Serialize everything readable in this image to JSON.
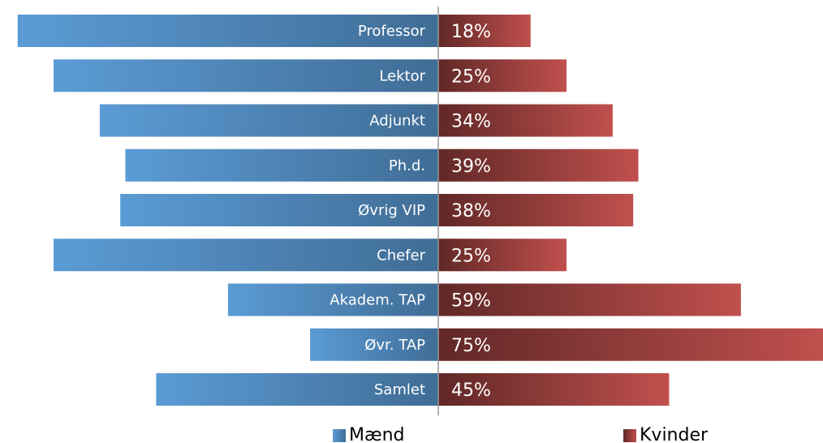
{
  "chart_data": {
    "type": "bar",
    "orientation": "diverging-horizontal",
    "categories": [
      "Professor",
      "Lektor",
      "Adjunkt",
      "Ph.d.",
      "Øvrig VIP",
      "Chefer",
      "Akadem. TAP",
      "Øvr. TAP",
      "Samlet"
    ],
    "series": [
      {
        "name": "Mænd",
        "color": "#5b9bd5",
        "values": [
          82,
          75,
          66,
          61,
          62,
          75,
          41,
          25,
          55
        ]
      },
      {
        "name": "Kvinder",
        "color": "#c0504d",
        "values": [
          18,
          25,
          34,
          39,
          38,
          25,
          59,
          75,
          45
        ],
        "value_labels": [
          "18%",
          "25%",
          "34%",
          "39%",
          "38%",
          "25%",
          "59%",
          "75%",
          "45%"
        ]
      }
    ]
  }
}
